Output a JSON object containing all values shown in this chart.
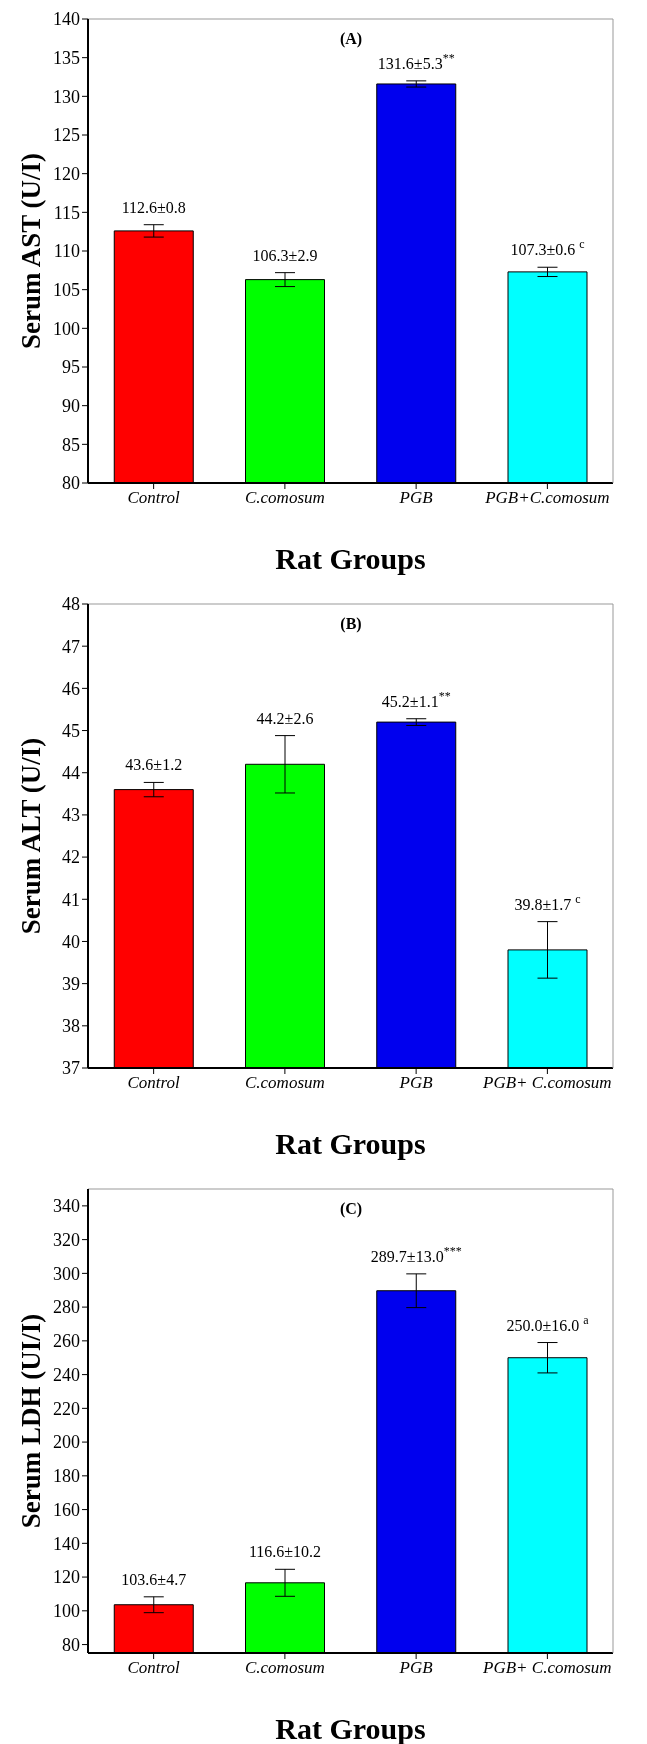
{
  "chart_data": [
    {
      "type": "bar",
      "title": "(A)",
      "xlabel": "Rat Groups",
      "ylabel": "Serum AST (U/I)",
      "categories": [
        "Control",
        "C.comosum",
        "PGB",
        "PGB+C.comosum"
      ],
      "values": [
        112.6,
        106.3,
        131.6,
        107.3
      ],
      "colors": [
        "#ff0000",
        "#00ff00",
        "#0000ee",
        "#00ffff"
      ],
      "errors": [
        0.8,
        0.9,
        0.4,
        0.6
      ],
      "value_labels": [
        "112.6±0.8",
        "106.3±2.9",
        "131.6±5.3$^{**}$",
        "107.3±0.6 $^{c}$"
      ],
      "ylim": [
        80,
        140
      ],
      "yticks": [
        80,
        85,
        90,
        95,
        100,
        105,
        110,
        115,
        120,
        125,
        130,
        135,
        140
      ]
    },
    {
      "type": "bar",
      "title": "(B)",
      "xlabel": "Rat Groups",
      "ylabel": "Serum ALT (U/I)",
      "categories": [
        "Control",
        "C.comosum",
        "PGB",
        "PGB+ C.comosum"
      ],
      "values": [
        43.6,
        44.2,
        45.2,
        39.8
      ],
      "colors": [
        "#ff0000",
        "#00ff00",
        "#0000ee",
        "#00ffff"
      ],
      "errors": [
        0.17,
        0.68,
        0.08,
        0.67
      ],
      "value_labels": [
        "43.6±1.2",
        "44.2±2.6",
        "45.2±1.1$^{**}$",
        "39.8±1.7 $^{c}$"
      ],
      "ylim": [
        37,
        48
      ],
      "yticks": [
        37,
        38,
        39,
        40,
        41,
        42,
        43,
        44,
        45,
        46,
        47,
        48
      ]
    },
    {
      "type": "bar",
      "title": "(C)",
      "xlabel": "Rat Groups",
      "ylabel": "Serum LDH (UI/I)",
      "categories": [
        "Control",
        "C.comosum",
        "PGB",
        "PGB+ C.comosum"
      ],
      "values": [
        103.6,
        116.6,
        289.7,
        250.0
      ],
      "colors": [
        "#ff0000",
        "#00ff00",
        "#0000ee",
        "#00ffff"
      ],
      "errors": [
        4.7,
        8,
        10,
        9
      ],
      "value_labels": [
        "103.6±4.7",
        "116.6±10.2",
        "289.7±13.0$^{***}$",
        "250.0±16.0 $^{a}$"
      ],
      "ylim": [
        75,
        350
      ],
      "yticks": [
        80,
        100,
        120,
        140,
        160,
        180,
        200,
        220,
        240,
        260,
        280,
        300,
        320,
        340
      ]
    }
  ]
}
